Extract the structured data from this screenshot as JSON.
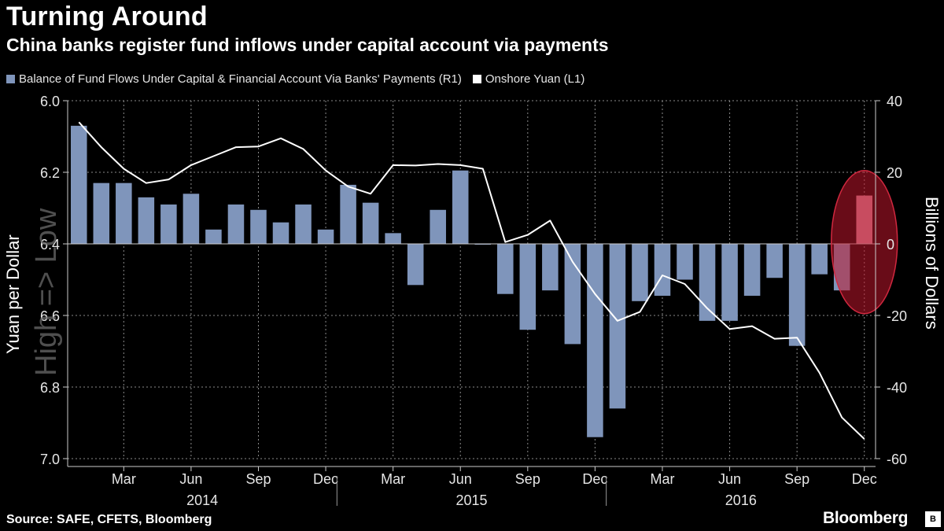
{
  "header": {
    "title": "Turning Around",
    "subtitle": "China banks register fund inflows under capital account via payments"
  },
  "footer": {
    "source": "Source: SAFE, CFETS, Bloomberg",
    "brand": "Bloomberg",
    "brand_icon": "B"
  },
  "colors": {
    "bar": "#7f95bb",
    "line": "#ffffff",
    "highlight": "#c0152b",
    "grid": "#8a8a8a"
  },
  "chart_data": {
    "type": "bar+line",
    "legend": [
      {
        "name": "Balance of Fund Flows Under Capital & Financial Account Via Banks' Payments (R1)",
        "kind": "bar"
      },
      {
        "name": "Onshore Yuan (L1)",
        "kind": "line"
      }
    ],
    "x_labels": [
      "Jan 2014",
      "Feb 2014",
      "Mar 2014",
      "Apr 2014",
      "May 2014",
      "Jun 2014",
      "Jul 2014",
      "Aug 2014",
      "Sep 2014",
      "Oct 2014",
      "Nov 2014",
      "Dec 2014",
      "Jan 2015",
      "Feb 2015",
      "Mar 2015",
      "Apr 2015",
      "May 2015",
      "Jun 2015",
      "Jul 2015",
      "Aug 2015",
      "Sep 2015",
      "Oct 2015",
      "Nov 2015",
      "Dec 2015",
      "Jan 2016",
      "Feb 2016",
      "Mar 2016",
      "Apr 2016",
      "May 2016",
      "Jun 2016",
      "Jul 2016",
      "Aug 2016",
      "Sep 2016",
      "Oct 2016",
      "Nov 2016",
      "Dec 2016"
    ],
    "series": [
      {
        "name": "Balance of Fund Flows (R1, billions of dollars)",
        "axis": "right",
        "values": [
          33,
          17,
          17,
          13,
          11,
          14,
          4,
          11,
          9.5,
          6,
          11,
          4,
          16.5,
          11.5,
          3,
          -11.5,
          9.5,
          20.5,
          0,
          -14,
          -24,
          -13,
          -28,
          -54,
          -46,
          -16,
          -14.5,
          -10,
          -21.5,
          -21.5,
          -14.5,
          -9.5,
          -28.5,
          -8.5,
          -13,
          13.5
        ]
      },
      {
        "name": "Onshore Yuan (L1, yuan per dollar)",
        "axis": "left",
        "values": [
          6.06,
          6.13,
          6.19,
          6.23,
          6.22,
          6.18,
          6.155,
          6.13,
          6.128,
          6.105,
          6.135,
          6.195,
          6.24,
          6.26,
          6.18,
          6.181,
          6.177,
          6.18,
          6.19,
          6.395,
          6.375,
          6.335,
          6.45,
          6.54,
          6.615,
          6.59,
          6.488,
          6.512,
          6.58,
          6.638,
          6.63,
          6.665,
          6.662,
          6.76,
          6.885,
          6.945
        ]
      }
    ],
    "axes": {
      "left": {
        "label": "Yuan per Dollar",
        "range": [
          6.0,
          7.0
        ],
        "inverted": true,
        "ticks": [
          "6.0",
          "6.2",
          "6.4",
          "6.6",
          "6.8",
          "7.0"
        ],
        "tick_values": [
          6.0,
          6.2,
          6.4,
          6.6,
          6.8,
          7.0
        ]
      },
      "right": {
        "label": "Billions of Dollars",
        "range": [
          -60,
          40
        ],
        "ticks": [
          "40",
          "20",
          "0",
          "-20",
          "-40",
          "-60"
        ],
        "tick_values": [
          40,
          20,
          0,
          -20,
          -40,
          -60
        ]
      }
    },
    "x_tick_labels": [
      {
        "label": "Mar",
        "index": 2
      },
      {
        "label": "Jun",
        "index": 5
      },
      {
        "label": "Sep",
        "index": 8
      },
      {
        "label": "Dec",
        "index": 11
      },
      {
        "label": "Mar",
        "index": 14
      },
      {
        "label": "Jun",
        "index": 17
      },
      {
        "label": "Sep",
        "index": 20
      },
      {
        "label": "Dec",
        "index": 23
      },
      {
        "label": "Mar",
        "index": 26
      },
      {
        "label": "Jun",
        "index": 29
      },
      {
        "label": "Sep",
        "index": 32
      },
      {
        "label": "Dec",
        "index": 35
      }
    ],
    "year_labels": [
      {
        "label": "2014",
        "index": 5.5
      },
      {
        "label": "2015",
        "index": 17.5
      },
      {
        "label": "2016",
        "index": 29.5
      }
    ],
    "watermark": "High => Low",
    "highlight_index": 35
  }
}
